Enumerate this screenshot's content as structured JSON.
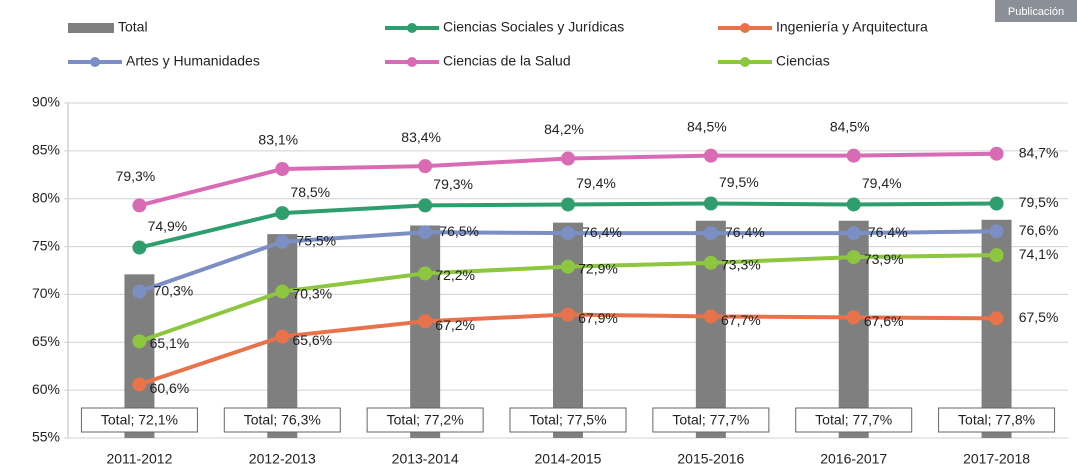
{
  "corner_label": "Publicación",
  "chart_data": {
    "type": "bar-line",
    "categories": [
      "2011-2012",
      "2012-2013",
      "2013-2014",
      "2014-2015",
      "2015-2016",
      "2016-2017",
      "2017-2018"
    ],
    "bars": {
      "name": "Total",
      "color": "#7f7f7f",
      "values": [
        72.1,
        76.3,
        77.2,
        77.5,
        77.7,
        77.7,
        77.8
      ],
      "value_labels": [
        "Total; 72,1%",
        "Total; 76,3%",
        "Total; 77,2%",
        "Total; 77,5%",
        "Total; 77,7%",
        "Total; 77,7%",
        "Total; 77,8%"
      ]
    },
    "series": [
      {
        "name": "Ciencias Sociales y Jurídicas",
        "color": "#2e9e6e",
        "values": [
          74.9,
          78.5,
          79.3,
          79.4,
          79.5,
          79.4,
          79.5
        ],
        "value_labels": [
          "74,9%",
          "78,5%",
          "79,3%",
          "79,4%",
          "79,5%",
          "79,4%",
          "79,5%"
        ]
      },
      {
        "name": "Ingeniería y Arquitectura",
        "color": "#e8734a",
        "values": [
          60.6,
          65.6,
          67.2,
          67.9,
          67.7,
          67.6,
          67.5
        ],
        "value_labels": [
          "60,6%",
          "65,6%",
          "67,2%",
          "67,9%",
          "67,7%",
          "67,6%",
          "67,5%"
        ]
      },
      {
        "name": "Artes y Humanidades",
        "color": "#7b8fc4",
        "values": [
          70.3,
          75.5,
          76.5,
          76.4,
          76.4,
          76.4,
          76.6
        ],
        "value_labels": [
          "70,3%",
          "75,5%",
          "76,5%",
          "76,4%",
          "76,4%",
          "76,4%",
          "76,6%"
        ]
      },
      {
        "name": "Ciencias de la Salud",
        "color": "#d96bb5",
        "values": [
          79.3,
          83.1,
          83.4,
          84.2,
          84.5,
          84.5,
          84.7
        ],
        "value_labels": [
          "79,3%",
          "83,1%",
          "83,4%",
          "84,2%",
          "84,5%",
          "84,5%",
          "84,7%"
        ]
      },
      {
        "name": "Ciencias",
        "color": "#8dc63f",
        "values": [
          65.1,
          70.3,
          72.2,
          72.9,
          73.3,
          73.9,
          74.1
        ],
        "value_labels": [
          "65,1%",
          "70,3%",
          "72,2%",
          "72,9%",
          "73,3%",
          "73,9%",
          "74,1%"
        ]
      }
    ],
    "ylim": [
      55,
      90
    ],
    "yticks": [
      {
        "value": 55,
        "label": "55%"
      },
      {
        "value": 60,
        "label": "60%"
      },
      {
        "value": 65,
        "label": "65%"
      },
      {
        "value": 70,
        "label": "70%"
      },
      {
        "value": 75,
        "label": "75%"
      },
      {
        "value": 80,
        "label": "80%"
      },
      {
        "value": 85,
        "label": "85%"
      },
      {
        "value": 90,
        "label": "90%"
      }
    ],
    "grid": true
  }
}
